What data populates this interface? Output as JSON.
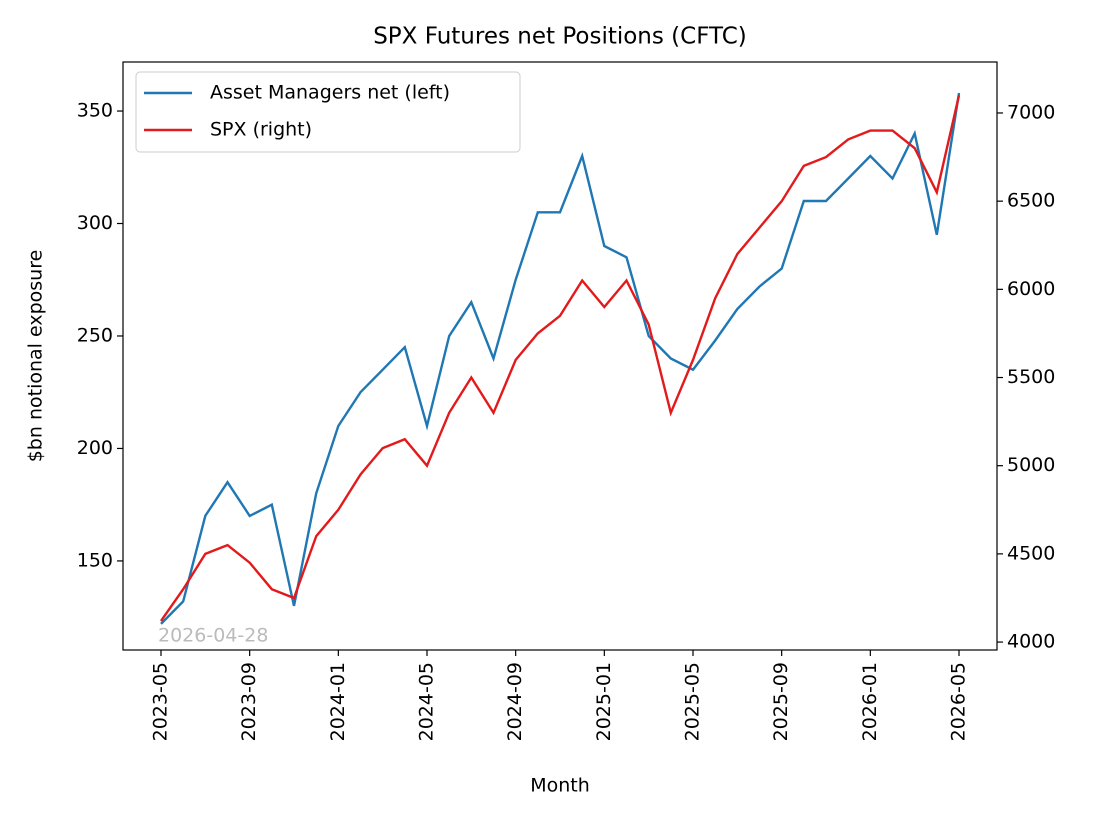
{
  "chart_data": {
    "type": "line",
    "title": "SPX Futures net Positions (CFTC)",
    "x_label": "Month",
    "y_label": "$bn notional exposure",
    "annotation": "2026-04-28",
    "x": [
      "2023-05",
      "2023-06",
      "2023-07",
      "2023-08",
      "2023-09",
      "2023-10",
      "2023-11",
      "2023-12",
      "2024-01",
      "2024-02",
      "2024-03",
      "2024-04",
      "2024-05",
      "2024-06",
      "2024-07",
      "2024-08",
      "2024-09",
      "2024-10",
      "2024-11",
      "2024-12",
      "2025-01",
      "2025-02",
      "2025-03",
      "2025-04",
      "2025-05",
      "2025-06",
      "2025-07",
      "2025-08",
      "2025-09",
      "2025-10",
      "2025-11",
      "2025-12",
      "2026-01",
      "2026-02",
      "2026-03",
      "2026-04",
      "2026-05"
    ],
    "series": [
      {
        "name": "Asset Managers net (left)",
        "color": "#1f77b4",
        "axis": "y",
        "values": [
          122,
          132,
          170,
          185,
          170,
          175,
          130,
          180,
          210,
          225,
          235,
          245,
          210,
          250,
          265,
          240,
          275,
          305,
          305,
          330,
          290,
          285,
          250,
          240,
          235,
          248,
          262,
          272,
          280,
          310,
          310,
          320,
          330,
          320,
          340,
          295,
          358
        ]
      },
      {
        "name": "SPX (right)",
        "color": "#e31a1c",
        "axis": "y2",
        "values": [
          4120,
          4300,
          4500,
          4550,
          4450,
          4300,
          4250,
          4600,
          4750,
          4950,
          5100,
          5150,
          5000,
          5300,
          5500,
          5300,
          5600,
          5750,
          5850,
          6050,
          5900,
          6050,
          5800,
          5300,
          5600,
          5950,
          6200,
          6350,
          6500,
          6700,
          6750,
          6850,
          6900,
          6900,
          6800,
          6550,
          7100
        ]
      }
    ],
    "xticks": [
      "2023-05",
      "2023-09",
      "2024-01",
      "2024-05",
      "2024-09",
      "2025-01",
      "2025-05",
      "2025-09",
      "2026-01",
      "2026-05"
    ],
    "ylim": [
      110.4,
      371.8
    ],
    "yticks": [
      150,
      200,
      250,
      300,
      350
    ],
    "y2lim": [
      3955,
      7289
    ],
    "y2ticks": [
      4000,
      4500,
      5000,
      5500,
      6000,
      6500,
      7000
    ],
    "legend": "upper-left",
    "grid": false
  }
}
